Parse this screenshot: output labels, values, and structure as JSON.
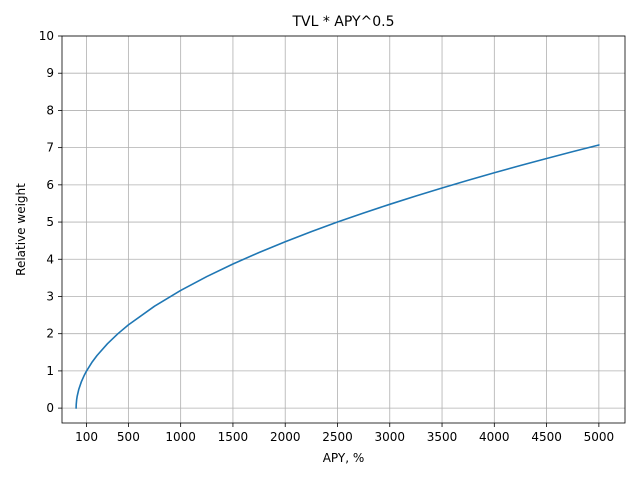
{
  "chart_data": {
    "type": "line",
    "title": "TVL * APY^0.5",
    "xlabel": "APY, %",
    "ylabel": "Relative weight",
    "xlim": [
      -135,
      5250
    ],
    "ylim": [
      -0.4,
      10
    ],
    "x_ticks": [
      100,
      500,
      1000,
      1500,
      2000,
      2500,
      3000,
      3500,
      4000,
      4500,
      5000
    ],
    "y_ticks": [
      0,
      1,
      2,
      3,
      4,
      5,
      6,
      7,
      8,
      9,
      10
    ],
    "grid": true,
    "legend": "none",
    "series": [
      {
        "color": "#1f77b4",
        "x": [
          0,
          1,
          5,
          10,
          25,
          50,
          75,
          100,
          150,
          200,
          300,
          400,
          500,
          750,
          1000,
          1250,
          1500,
          1750,
          2000,
          2250,
          2500,
          2750,
          3000,
          3250,
          3500,
          3750,
          4000,
          4250,
          4500,
          4750,
          5000
        ],
        "y": [
          0,
          0.1,
          0.224,
          0.316,
          0.5,
          0.707,
          0.866,
          1.0,
          1.225,
          1.414,
          1.732,
          2.0,
          2.236,
          2.739,
          3.162,
          3.536,
          3.873,
          4.183,
          4.472,
          4.743,
          5.0,
          5.244,
          5.477,
          5.701,
          5.916,
          6.124,
          6.325,
          6.519,
          6.708,
          6.892,
          7.071
        ]
      }
    ]
  }
}
